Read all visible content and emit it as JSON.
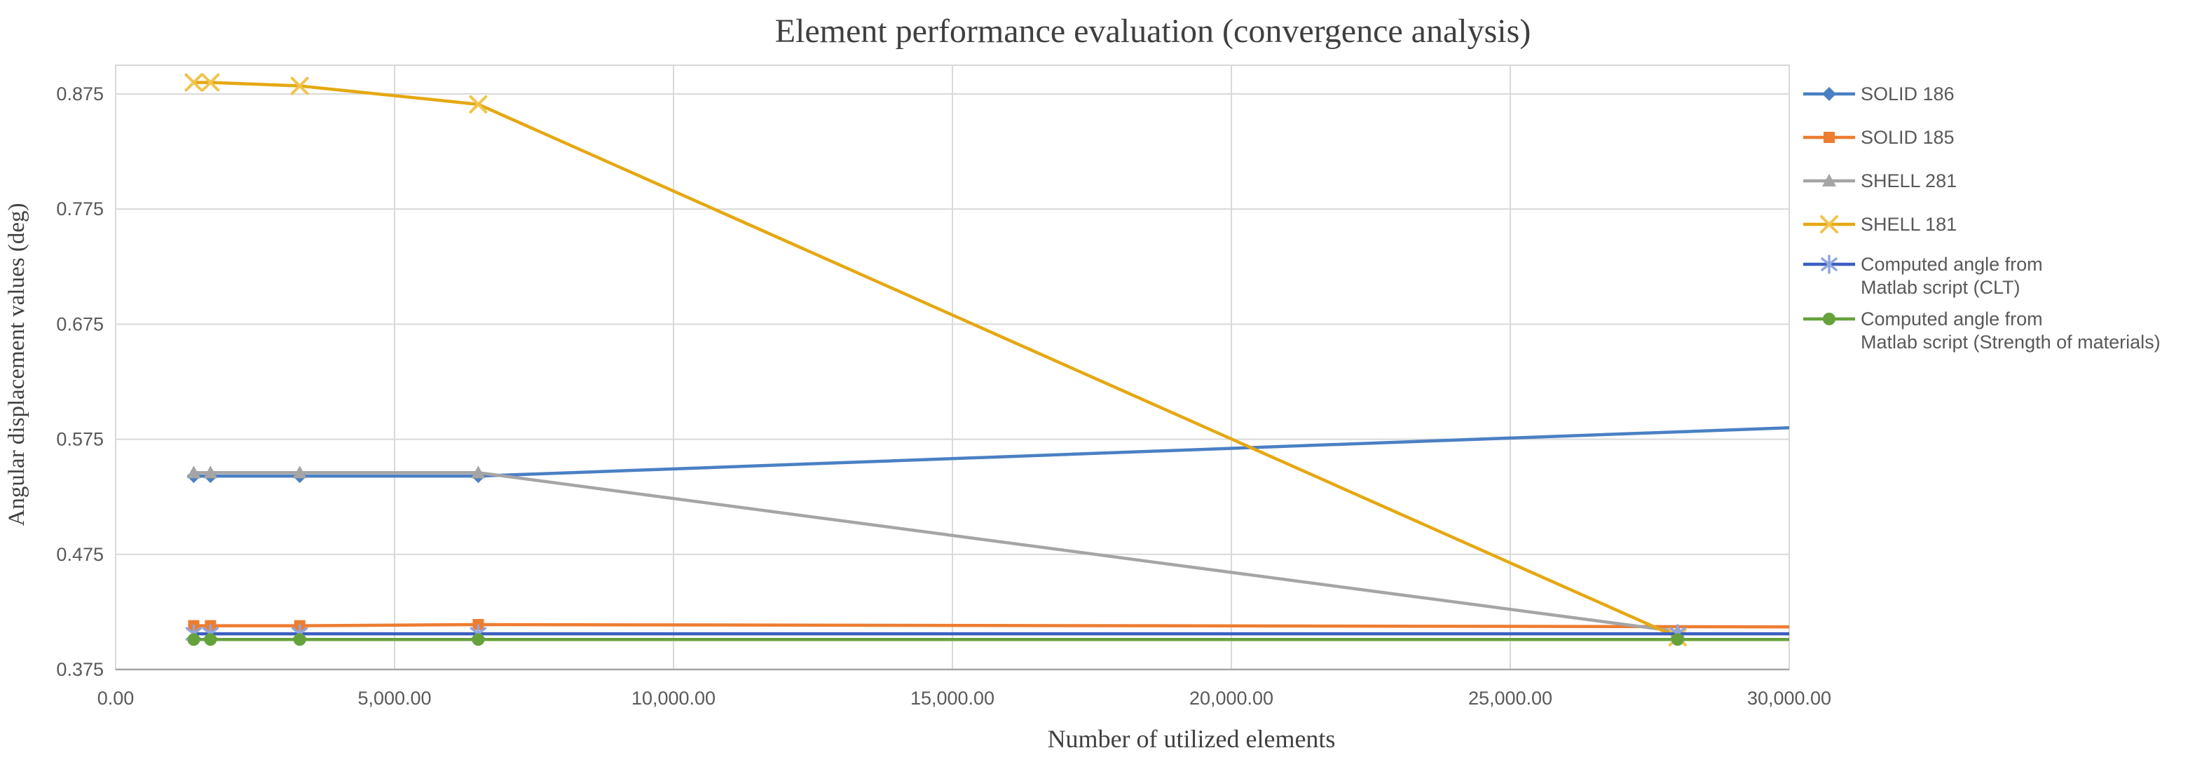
{
  "chart_data": {
    "type": "line",
    "title": "Element performance evaluation (convergence analysis)",
    "xlabel": "Number of utilized elements",
    "ylabel": "Angular displacement values (deg)",
    "legend_position": "right",
    "grid": "on",
    "x_axis": {
      "min": 0,
      "max": 30000,
      "ticks": [
        {
          "v": 0,
          "label": "0.00"
        },
        {
          "v": 5000,
          "label": "5,000.00"
        },
        {
          "v": 10000,
          "label": "10,000.00"
        },
        {
          "v": 15000,
          "label": "15,000.00"
        },
        {
          "v": 20000,
          "label": "20,000.00"
        },
        {
          "v": 25000,
          "label": "25,000.00"
        },
        {
          "v": 30000,
          "label": "30,000.00"
        }
      ]
    },
    "y_axis": {
      "min": 0.375,
      "max": 0.9,
      "ticks": [
        {
          "v": 0.375,
          "label": "0.375"
        },
        {
          "v": 0.475,
          "label": "0.475"
        },
        {
          "v": 0.575,
          "label": "0.575"
        },
        {
          "v": 0.675,
          "label": "0.675"
        },
        {
          "v": 0.775,
          "label": "0.775"
        },
        {
          "v": 0.875,
          "label": "0.875"
        }
      ]
    },
    "style": {
      "grid_color": "#d9d9d9",
      "axis_line_color": "#a6a6a6",
      "tick_text_color": "#595959",
      "title_color": "#3f3f3f"
    },
    "series": [
      {
        "name": "SOLID 186",
        "legend_lines": [
          "SOLID 186"
        ],
        "color": "#4a80c4",
        "marker": "diamond",
        "marker_color": "#4a80c4",
        "points": [
          {
            "x": 1400,
            "y": 0.543,
            "m": true
          },
          {
            "x": 1700,
            "y": 0.543,
            "m": true
          },
          {
            "x": 3300,
            "y": 0.543,
            "m": true
          },
          {
            "x": 6500,
            "y": 0.543,
            "m": true
          },
          {
            "x": 30000,
            "y": 0.585,
            "m": false
          }
        ]
      },
      {
        "name": "SOLID 185",
        "legend_lines": [
          "SOLID 185"
        ],
        "color": "#ed7d31",
        "marker": "square",
        "marker_color": "#ed7d31",
        "points": [
          {
            "x": 1400,
            "y": 0.413,
            "m": true
          },
          {
            "x": 1700,
            "y": 0.413,
            "m": true
          },
          {
            "x": 3300,
            "y": 0.413,
            "m": true
          },
          {
            "x": 6500,
            "y": 0.414,
            "m": true
          },
          {
            "x": 30000,
            "y": 0.412,
            "m": false
          }
        ]
      },
      {
        "name": "SHELL 281",
        "legend_lines": [
          "SHELL 281"
        ],
        "color": "#a5a5a5",
        "marker": "triangle",
        "marker_color": "#a5a5a5",
        "points": [
          {
            "x": 1400,
            "y": 0.546,
            "m": true
          },
          {
            "x": 1700,
            "y": 0.546,
            "m": true
          },
          {
            "x": 3300,
            "y": 0.546,
            "m": true
          },
          {
            "x": 6500,
            "y": 0.546,
            "m": true
          },
          {
            "x": 28000,
            "y": 0.408,
            "m": true
          }
        ]
      },
      {
        "name": "SHELL 181",
        "legend_lines": [
          "SHELL 181"
        ],
        "color": "#e5a812",
        "marker": "x",
        "marker_color": "#f0c44e",
        "points": [
          {
            "x": 1400,
            "y": 0.885,
            "m": true
          },
          {
            "x": 1700,
            "y": 0.885,
            "m": true
          },
          {
            "x": 3300,
            "y": 0.882,
            "m": true
          },
          {
            "x": 6500,
            "y": 0.866,
            "m": true
          },
          {
            "x": 28000,
            "y": 0.403,
            "m": true
          }
        ]
      },
      {
        "name": "Computed angle from Matlab script (CLT)",
        "legend_lines": [
          "Computed angle from",
          "Matlab script (CLT)"
        ],
        "color": "#3c5ec0",
        "marker": "asterisk",
        "marker_color": "#8fa6e0",
        "points": [
          {
            "x": 1400,
            "y": 0.406,
            "m": true
          },
          {
            "x": 1700,
            "y": 0.406,
            "m": true
          },
          {
            "x": 3300,
            "y": 0.406,
            "m": true
          },
          {
            "x": 6500,
            "y": 0.406,
            "m": true
          },
          {
            "x": 28000,
            "y": 0.406,
            "m": true
          },
          {
            "x": 30000,
            "y": 0.406,
            "m": false
          }
        ]
      },
      {
        "name": "Computed angle from Matlab script (Strength of materials)",
        "legend_lines": [
          "Computed angle from",
          "Matlab script (Strength of materials)"
        ],
        "color": "#66a23c",
        "marker": "circle",
        "marker_color": "#66a23c",
        "points": [
          {
            "x": 1400,
            "y": 0.401,
            "m": true
          },
          {
            "x": 1700,
            "y": 0.401,
            "m": true
          },
          {
            "x": 3300,
            "y": 0.401,
            "m": true
          },
          {
            "x": 6500,
            "y": 0.401,
            "m": true
          },
          {
            "x": 28000,
            "y": 0.401,
            "m": true
          },
          {
            "x": 30000,
            "y": 0.401,
            "m": false
          }
        ]
      }
    ]
  }
}
